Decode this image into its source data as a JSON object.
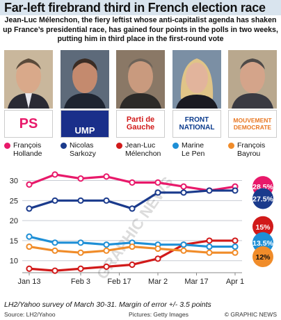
{
  "header": {
    "title": "Far-left firebrand third in French election race",
    "subtitle": "Jean-Luc Mélenchon, the fiery leftist whose anti-capitalist agenda has shaken up France’s presidential race, has gained four points in the polls in two weeks, putting him in third place in the first-round vote"
  },
  "candidates": [
    {
      "logo_text": "PS",
      "logo_color": "#e8196a"
    },
    {
      "logo_text": "UMP",
      "logo_color": "#1a2f8a"
    },
    {
      "logo_text": "Parti de Gauche",
      "logo_color": "#d11a1a"
    },
    {
      "logo_text": "FRONT NATIONAL",
      "logo_color": "#0a3a8c"
    },
    {
      "logo_text": "MOUVEMENT DEMOCRATE",
      "logo_color": "#e87722"
    }
  ],
  "legend": [
    {
      "name": "François\nHollande",
      "color": "#e8196a"
    },
    {
      "name": "Nicolas\nSarkozy",
      "color": "#1a3a8c"
    },
    {
      "name": "Jean-Luc\nMélenchon",
      "color": "#d11a1a"
    },
    {
      "name": "Marine\nLe Pen",
      "color": "#1e8fd6"
    },
    {
      "name": "François\nBayrou",
      "color": "#f08c2a"
    }
  ],
  "chart_data": {
    "type": "line",
    "x_ticks": [
      "Jan 13",
      "Feb 3",
      "Feb 17",
      "Mar 2",
      "Mar 17",
      "Apr 1"
    ],
    "y_ticks": [
      "10",
      "15",
      "20",
      "25",
      "30"
    ],
    "ylim": [
      7,
      32
    ],
    "grid": true,
    "series": [
      {
        "name": "François Hollande",
        "color": "#e8196a",
        "x": [
          0,
          1,
          2,
          3,
          4,
          5,
          6,
          7,
          8
        ],
        "values": [
          29,
          31.5,
          30.5,
          31,
          29.5,
          29.5,
          28.5,
          27.5,
          28.5
        ],
        "end_label": "28.5%"
      },
      {
        "name": "Nicolas Sarkozy",
        "color": "#1a3a8c",
        "x": [
          0,
          1,
          2,
          3,
          4,
          5,
          6,
          7,
          8
        ],
        "values": [
          23,
          25,
          25,
          25,
          23,
          27,
          27,
          27.5,
          27.5
        ],
        "end_label": "27.5%"
      },
      {
        "name": "Jean-Luc Mélenchon",
        "color": "#d11a1a",
        "x": [
          0,
          1,
          2,
          3,
          4,
          5,
          6,
          7,
          8
        ],
        "values": [
          8,
          7.5,
          8,
          8.5,
          9,
          10.5,
          14,
          15,
          15
        ],
        "end_label": "15%"
      },
      {
        "name": "Marine Le Pen",
        "color": "#1e8fd6",
        "x": [
          0,
          1,
          2,
          3,
          4,
          5,
          6,
          7,
          8
        ],
        "values": [
          16,
          14.5,
          14.5,
          14,
          14.5,
          14,
          14,
          13.5,
          13.5
        ],
        "end_label": "13.5%"
      },
      {
        "name": "François Bayrou",
        "color": "#f08c2a",
        "x": [
          0,
          1,
          2,
          3,
          4,
          5,
          6,
          7,
          8
        ],
        "values": [
          13.5,
          12.5,
          12,
          12.5,
          13.5,
          13,
          12.5,
          12,
          12
        ],
        "end_label": "12%"
      }
    ],
    "watermark": "GRAPHIC NEWS"
  },
  "footer": {
    "note": "LH2/Yahoo survey of March 30-31. Margin of error +/- 3.5 points",
    "source": "Source: LH2/Yahoo",
    "pictures": "Pictures: Getty Images",
    "credit": "© GRAPHIC NEWS"
  }
}
